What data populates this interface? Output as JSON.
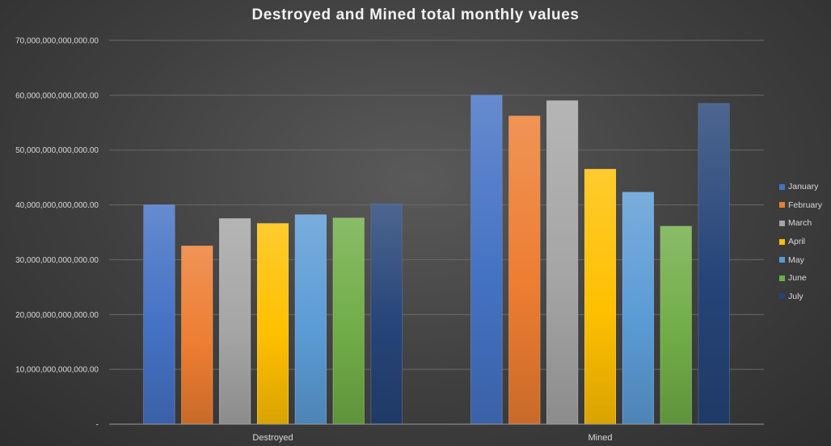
{
  "chart_data": {
    "type": "bar",
    "title": "Destroyed and Mined total monthly values",
    "categories": [
      "Destroyed",
      "Mined"
    ],
    "series": [
      {
        "name": "January",
        "color": "#4472C4",
        "values": [
          40000000000000,
          60000000000000
        ]
      },
      {
        "name": "February",
        "color": "#ED7D31",
        "values": [
          32500000000000,
          56200000000000
        ]
      },
      {
        "name": "March",
        "color": "#A5A5A5",
        "values": [
          37500000000000,
          59000000000000
        ]
      },
      {
        "name": "April",
        "color": "#FFC000",
        "values": [
          36600000000000,
          46500000000000
        ]
      },
      {
        "name": "May",
        "color": "#5B9BD5",
        "values": [
          38200000000000,
          42300000000000
        ]
      },
      {
        "name": "June",
        "color": "#70AD47",
        "values": [
          37600000000000,
          36100000000000
        ]
      },
      {
        "name": "July",
        "color": "#264478",
        "values": [
          40200000000000,
          58500000000000
        ]
      }
    ],
    "ylim": [
      0,
      70000000000000
    ],
    "yticks": [
      {
        "value": 0,
        "label": "-"
      },
      {
        "value": 10000000000000,
        "label": "10,000,000,000,000.00"
      },
      {
        "value": 20000000000000,
        "label": "20,000,000,000,000.00"
      },
      {
        "value": 30000000000000,
        "label": "30,000,000,000,000.00"
      },
      {
        "value": 40000000000000,
        "label": "40,000,000,000,000.00"
      },
      {
        "value": 50000000000000,
        "label": "50,000,000,000,000.00"
      },
      {
        "value": 60000000000000,
        "label": "60,000,000,000,000.00"
      },
      {
        "value": 70000000000000,
        "label": "70,000,000,000,000.00"
      }
    ],
    "grid": true,
    "legend_position": "right"
  }
}
